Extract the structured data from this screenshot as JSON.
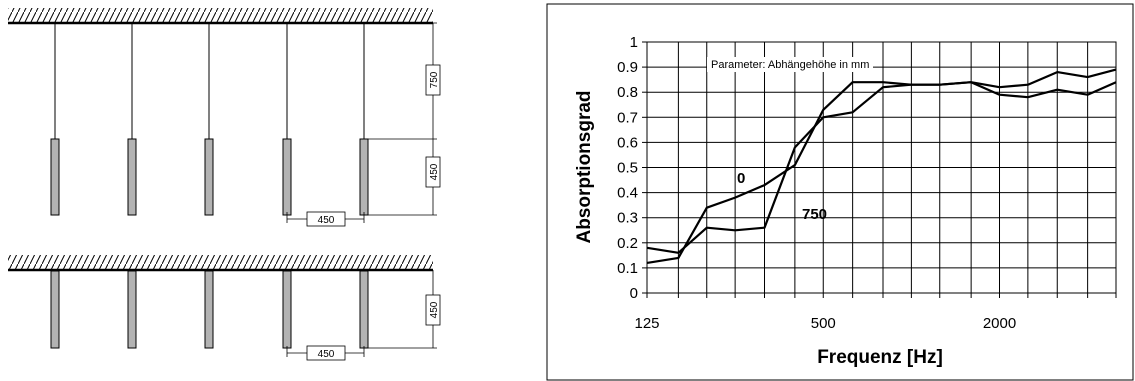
{
  "diagram": {
    "top_arrangement": {
      "suspension_height_label": "750",
      "baffle_height_label": "450",
      "spacing_label": "450"
    },
    "bottom_arrangement": {
      "baffle_height_label": "450",
      "spacing_label": "450"
    }
  },
  "chart_data": {
    "type": "line",
    "title": "",
    "annotation": "Parameter: Abhängehöhe in mm",
    "xlabel": "Frequenz [Hz]",
    "ylabel": "Absorptionsgrad",
    "x_scale": "log",
    "x": [
      125,
      160,
      200,
      250,
      315,
      400,
      500,
      630,
      800,
      1000,
      1250,
      1600,
      2000,
      2500,
      3150,
      4000,
      5000
    ],
    "x_tick_labels": [
      "125",
      "500",
      "2000"
    ],
    "y_ticks": [
      "0",
      "0.1",
      "0.2",
      "0.3",
      "0.4",
      "0.5",
      "0.6",
      "0.7",
      "0.8",
      "0.9",
      "1"
    ],
    "ylim": [
      0,
      1
    ],
    "grid": true,
    "series": [
      {
        "name": "0",
        "values": [
          0.12,
          0.14,
          0.34,
          0.38,
          0.43,
          0.51,
          0.73,
          0.84,
          0.84,
          0.83,
          0.83,
          0.84,
          0.82,
          0.83,
          0.88,
          0.86,
          0.89
        ]
      },
      {
        "name": "750",
        "values": [
          0.18,
          0.16,
          0.26,
          0.25,
          0.26,
          0.58,
          0.7,
          0.72,
          0.82,
          0.83,
          0.83,
          0.84,
          0.79,
          0.78,
          0.81,
          0.79,
          0.84
        ]
      }
    ]
  }
}
